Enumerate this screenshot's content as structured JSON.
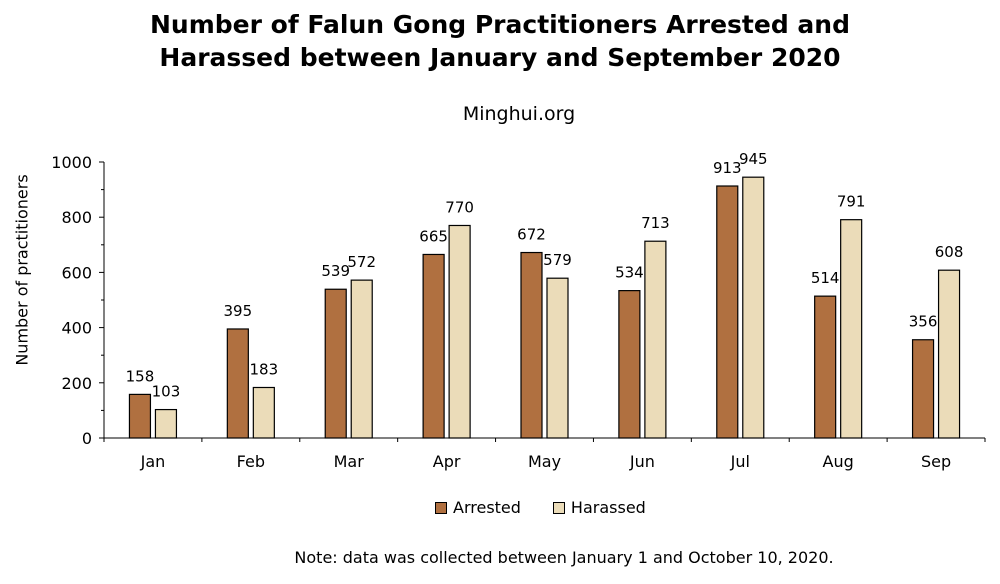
{
  "header": {
    "title_line1": "Number of Falun Gong Practitioners Arrested and",
    "title_line2": "Harassed between January and September 2020",
    "subtitle": "Minghui.org"
  },
  "footer": {
    "note": "Note: data was collected between January 1 and October 10, 2020."
  },
  "colors": {
    "arrested": "#b07040",
    "harassed": "#ebdcb9"
  },
  "chart_data": {
    "type": "bar",
    "title": "Number of Falun Gong Practitioners Arrested and Harassed between January and September 2020",
    "subtitle": "Minghui.org",
    "xlabel": "",
    "ylabel": "Number of practitioners",
    "ylim": [
      0,
      1000
    ],
    "yticks": [
      0,
      200,
      400,
      600,
      800,
      1000
    ],
    "grid": false,
    "legend": "bottom",
    "categories": [
      "Jan",
      "Feb",
      "Mar",
      "Apr",
      "May",
      "Jun",
      "Jul",
      "Aug",
      "Sep"
    ],
    "series": [
      {
        "name": "Arrested",
        "values": [
          158,
          395,
          539,
          665,
          672,
          534,
          913,
          514,
          356
        ]
      },
      {
        "name": "Harassed",
        "values": [
          103,
          183,
          572,
          770,
          579,
          713,
          945,
          791,
          608
        ]
      }
    ]
  }
}
